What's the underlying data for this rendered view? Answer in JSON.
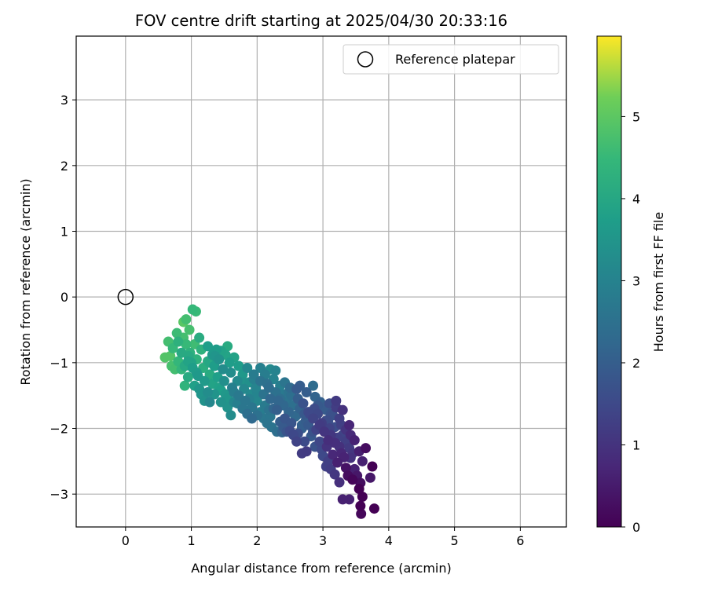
{
  "chart_data": {
    "type": "scatter",
    "title": "FOV centre drift starting at 2025/04/30 20:33:16",
    "xlabel": "Angular distance from reference (arcmin)",
    "ylabel": "Rotation from reference (arcmin)",
    "xlim": [
      -0.75,
      6.7
    ],
    "ylim": [
      -3.5,
      3.97
    ],
    "xticks": [
      0,
      1,
      2,
      3,
      4,
      5,
      6
    ],
    "yticks": [
      -3,
      -2,
      -1,
      0,
      1,
      2,
      3
    ],
    "xtick_labels": [
      "0",
      "1",
      "2",
      "3",
      "4",
      "5",
      "6"
    ],
    "ytick_labels": [
      "−3",
      "−2",
      "−1",
      "0",
      "1",
      "2",
      "3"
    ],
    "grid": true,
    "legend": {
      "placement": "top-right",
      "entries": [
        "Reference platepar"
      ]
    },
    "reference_point": {
      "x": 0,
      "y": 0
    },
    "colorbar": {
      "label": "Hours from first FF file",
      "colormap": "viridis",
      "range": [
        0,
        5.98
      ],
      "ticks": [
        0,
        1,
        2,
        3,
        4,
        5
      ],
      "tick_labels": [
        "0",
        "1",
        "2",
        "3",
        "4",
        "5"
      ]
    },
    "series": [
      {
        "columns": [
          "x",
          "y",
          "hours"
        ],
        "points": [
          [
            3.78,
            -3.22
          ],
          [
            3.58,
            -3.3
          ],
          [
            3.57,
            -3.18
          ],
          [
            3.6,
            -3.04
          ],
          [
            3.4,
            -3.08
          ],
          [
            3.3,
            -3.08
          ],
          [
            3.72,
            -2.75
          ],
          [
            3.55,
            -2.92
          ],
          [
            3.57,
            -2.83
          ],
          [
            3.45,
            -2.78
          ],
          [
            3.65,
            -2.3
          ],
          [
            3.75,
            -2.58
          ],
          [
            3.52,
            -2.72
          ],
          [
            3.38,
            -2.72
          ],
          [
            3.48,
            -2.62
          ],
          [
            3.35,
            -2.6
          ],
          [
            3.25,
            -2.82
          ],
          [
            3.18,
            -2.7
          ],
          [
            3.12,
            -2.62
          ],
          [
            3.08,
            -2.5
          ],
          [
            3.05,
            -2.58
          ],
          [
            3.42,
            -2.45
          ],
          [
            3.55,
            -2.35
          ],
          [
            3.6,
            -2.5
          ],
          [
            3.45,
            -2.38
          ],
          [
            3.4,
            -2.3
          ],
          [
            3.32,
            -2.44
          ],
          [
            3.28,
            -2.38
          ],
          [
            3.22,
            -2.52
          ],
          [
            3.15,
            -2.4
          ],
          [
            3.0,
            -2.42
          ],
          [
            2.98,
            -2.32
          ],
          [
            3.06,
            -2.28
          ],
          [
            3.18,
            -2.22
          ],
          [
            3.25,
            -2.28
          ],
          [
            3.35,
            -2.2
          ],
          [
            3.48,
            -2.18
          ],
          [
            3.42,
            -2.1
          ],
          [
            3.3,
            -2.1
          ],
          [
            3.22,
            -2.14
          ],
          [
            3.12,
            -2.1
          ],
          [
            3.08,
            -2.18
          ],
          [
            2.95,
            -2.2
          ],
          [
            2.88,
            -2.28
          ],
          [
            2.75,
            -2.35
          ],
          [
            2.68,
            -2.38
          ],
          [
            3.02,
            -2.05
          ],
          [
            3.1,
            -2.0
          ],
          [
            3.18,
            -1.98
          ],
          [
            3.28,
            -1.95
          ],
          [
            3.35,
            -2.02
          ],
          [
            3.4,
            -1.95
          ],
          [
            3.25,
            -1.85
          ],
          [
            3.15,
            -1.8
          ],
          [
            3.08,
            -1.88
          ],
          [
            2.98,
            -1.92
          ],
          [
            2.9,
            -2.02
          ],
          [
            2.82,
            -2.12
          ],
          [
            2.72,
            -2.2
          ],
          [
            3.05,
            -1.72
          ],
          [
            3.2,
            -1.68
          ],
          [
            3.1,
            -1.62
          ],
          [
            3.0,
            -1.68
          ],
          [
            2.92,
            -1.78
          ],
          [
            2.85,
            -1.85
          ],
          [
            2.78,
            -1.95
          ],
          [
            3.2,
            -1.58
          ],
          [
            3.3,
            -1.72
          ],
          [
            2.96,
            -1.6
          ],
          [
            2.87,
            -1.7
          ],
          [
            2.8,
            -1.78
          ],
          [
            2.74,
            -1.88
          ],
          [
            2.68,
            -2.0
          ],
          [
            2.62,
            -2.08
          ],
          [
            2.7,
            -1.62
          ],
          [
            2.88,
            -1.52
          ],
          [
            2.65,
            -1.7
          ],
          [
            2.58,
            -1.82
          ],
          [
            2.52,
            -1.92
          ],
          [
            2.5,
            -2.04
          ],
          [
            2.85,
            -1.35
          ],
          [
            2.75,
            -1.45
          ],
          [
            2.62,
            -1.55
          ],
          [
            2.55,
            -1.65
          ],
          [
            2.48,
            -1.75
          ],
          [
            2.42,
            -1.85
          ],
          [
            2.4,
            -1.98
          ],
          [
            2.38,
            -2.06
          ],
          [
            2.3,
            -2.05
          ],
          [
            2.35,
            -1.9
          ],
          [
            2.45,
            -1.6
          ],
          [
            2.52,
            -1.5
          ],
          [
            2.6,
            -1.4
          ],
          [
            2.65,
            -1.35
          ],
          [
            2.5,
            -1.38
          ],
          [
            2.4,
            -1.48
          ],
          [
            2.32,
            -1.58
          ],
          [
            2.25,
            -1.7
          ],
          [
            2.2,
            -1.82
          ],
          [
            2.15,
            -1.92
          ],
          [
            2.22,
            -1.98
          ],
          [
            2.1,
            -1.85
          ],
          [
            2.05,
            -1.75
          ],
          [
            2.12,
            -1.65
          ],
          [
            2.2,
            -1.55
          ],
          [
            2.28,
            -1.45
          ],
          [
            2.35,
            -1.35
          ],
          [
            2.42,
            -1.3
          ],
          [
            2.25,
            -1.25
          ],
          [
            2.18,
            -1.38
          ],
          [
            2.1,
            -1.48
          ],
          [
            2.0,
            -1.58
          ],
          [
            1.92,
            -1.68
          ],
          [
            1.85,
            -1.78
          ],
          [
            1.78,
            -1.7
          ],
          [
            1.82,
            -1.58
          ],
          [
            1.9,
            -1.48
          ],
          [
            1.98,
            -1.38
          ],
          [
            2.05,
            -1.28
          ],
          [
            2.12,
            -1.18
          ],
          [
            2.2,
            -1.1
          ],
          [
            2.28,
            -1.12
          ],
          [
            2.05,
            -1.08
          ],
          [
            1.95,
            -1.18
          ],
          [
            1.88,
            -1.3
          ],
          [
            1.8,
            -1.4
          ],
          [
            1.72,
            -1.5
          ],
          [
            1.65,
            -1.6
          ],
          [
            1.55,
            -1.68
          ],
          [
            1.6,
            -1.8
          ],
          [
            1.45,
            -1.6
          ],
          [
            1.52,
            -1.48
          ],
          [
            1.62,
            -1.38
          ],
          [
            1.7,
            -1.28
          ],
          [
            1.78,
            -1.18
          ],
          [
            1.85,
            -1.08
          ],
          [
            1.72,
            -1.05
          ],
          [
            1.6,
            -1.15
          ],
          [
            1.5,
            -1.28
          ],
          [
            1.42,
            -1.38
          ],
          [
            1.35,
            -1.48
          ],
          [
            1.28,
            -1.6
          ],
          [
            1.2,
            -1.58
          ],
          [
            1.25,
            -1.45
          ],
          [
            1.32,
            -1.32
          ],
          [
            1.4,
            -1.22
          ],
          [
            1.48,
            -1.1
          ],
          [
            1.58,
            -1.0
          ],
          [
            1.65,
            -0.92
          ],
          [
            1.52,
            -0.88
          ],
          [
            1.42,
            -0.95
          ],
          [
            1.35,
            -1.05
          ],
          [
            1.28,
            -1.18
          ],
          [
            1.2,
            -1.28
          ],
          [
            1.12,
            -1.4
          ],
          [
            1.05,
            -1.35
          ],
          [
            1.1,
            -1.2
          ],
          [
            1.18,
            -1.08
          ],
          [
            1.25,
            -0.98
          ],
          [
            1.32,
            -0.88
          ],
          [
            1.38,
            -0.8
          ],
          [
            1.55,
            -0.75
          ],
          [
            1.25,
            -0.75
          ],
          [
            1.15,
            -0.8
          ],
          [
            1.08,
            -0.95
          ],
          [
            1.02,
            -1.08
          ],
          [
            0.95,
            -1.22
          ],
          [
            0.9,
            -1.35
          ],
          [
            0.98,
            -0.85
          ],
          [
            1.05,
            -0.72
          ],
          [
            1.12,
            -0.62
          ],
          [
            0.92,
            -0.72
          ],
          [
            0.85,
            -0.85
          ],
          [
            0.8,
            -0.98
          ],
          [
            0.75,
            -1.1
          ],
          [
            0.7,
            -1.05
          ],
          [
            0.68,
            -0.9
          ],
          [
            0.72,
            -0.78
          ],
          [
            0.8,
            -0.68
          ],
          [
            0.88,
            -0.62
          ],
          [
            0.65,
            -0.68
          ],
          [
            0.6,
            -0.92
          ],
          [
            0.9,
            -1.05
          ],
          [
            0.95,
            -0.98
          ],
          [
            1.0,
            -1.0
          ],
          [
            0.85,
            -1.1
          ],
          [
            0.88,
            -0.38
          ],
          [
            0.92,
            -0.34
          ],
          [
            1.02,
            -0.19
          ],
          [
            1.07,
            -0.22
          ],
          [
            0.97,
            -0.5
          ],
          [
            0.78,
            -0.55
          ],
          [
            1.28,
            -1.0
          ],
          [
            1.36,
            -0.9
          ],
          [
            1.45,
            -0.82
          ],
          [
            1.15,
            -1.48
          ],
          [
            1.08,
            -1.15
          ],
          [
            0.96,
            -0.9
          ],
          [
            2.6,
            -2.2
          ],
          [
            2.55,
            -2.1
          ],
          [
            2.45,
            -2.05
          ],
          [
            2.68,
            -1.95
          ],
          [
            2.78,
            -1.75
          ],
          [
            2.92,
            -1.65
          ],
          [
            3.05,
            -1.88
          ],
          [
            3.12,
            -1.78
          ],
          [
            2.85,
            -2.05
          ],
          [
            2.95,
            -1.95
          ],
          [
            2.72,
            -1.78
          ],
          [
            2.6,
            -1.8
          ],
          [
            2.4,
            -1.65
          ],
          [
            2.3,
            -1.72
          ],
          [
            2.18,
            -1.72
          ],
          [
            2.0,
            -1.8
          ],
          [
            1.92,
            -1.85
          ],
          [
            1.7,
            -1.62
          ],
          [
            1.65,
            -1.45
          ],
          [
            1.55,
            -1.55
          ],
          [
            1.45,
            -1.42
          ],
          [
            2.35,
            -1.55
          ],
          [
            2.48,
            -1.45
          ],
          [
            2.0,
            -1.45
          ],
          [
            1.88,
            -1.55
          ],
          [
            2.15,
            -1.32
          ],
          [
            1.95,
            -1.25
          ],
          [
            1.8,
            -1.3
          ]
        ]
      }
    ]
  }
}
